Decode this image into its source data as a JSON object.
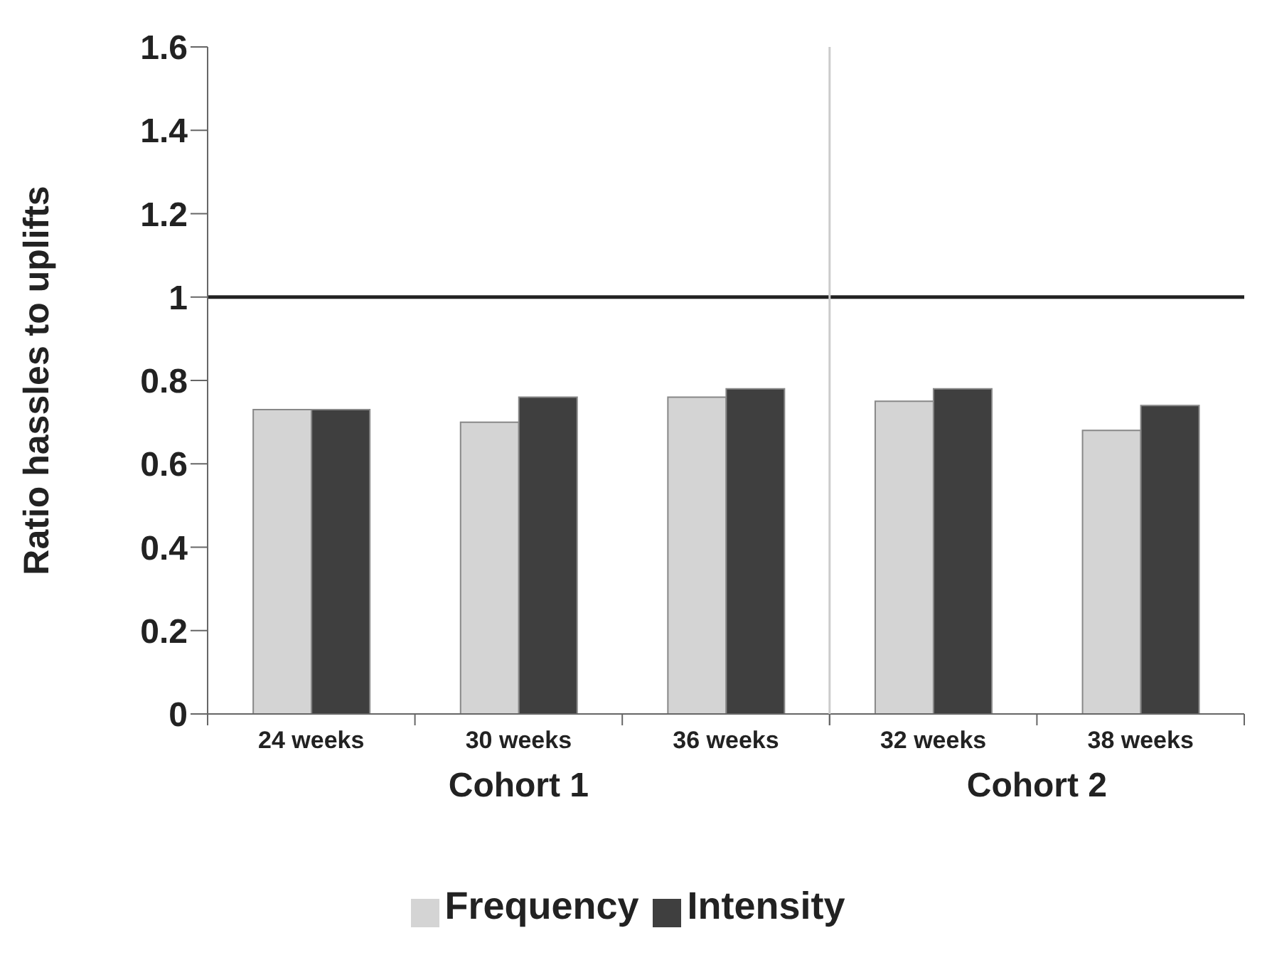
{
  "chart_data": {
    "type": "bar",
    "ylabel": "Ratio hassles to uplifts",
    "categories": [
      "24 weeks",
      "30 weeks",
      "36 weeks",
      "32 weeks",
      "38 weeks"
    ],
    "series": [
      {
        "name": "Frequency",
        "color": "#d4d4d4",
        "values": [
          0.73,
          0.7,
          0.76,
          0.75,
          0.68
        ]
      },
      {
        "name": "Intensity",
        "color": "#3f3f3f",
        "values": [
          0.73,
          0.76,
          0.78,
          0.78,
          0.74
        ]
      }
    ],
    "ylim": [
      0,
      1.6
    ],
    "yticks": [
      0,
      0.2,
      0.4,
      0.6,
      0.8,
      1,
      1.2,
      1.4,
      1.6
    ],
    "ref_lines": [
      {
        "axis": "y",
        "value": 1,
        "color": "#222222"
      },
      {
        "axis": "x",
        "value": "32 weeks",
        "color": "#cccccc"
      }
    ],
    "annotations": [
      "Cohort 1",
      "Cohort 2"
    ],
    "legend": "bottom"
  }
}
